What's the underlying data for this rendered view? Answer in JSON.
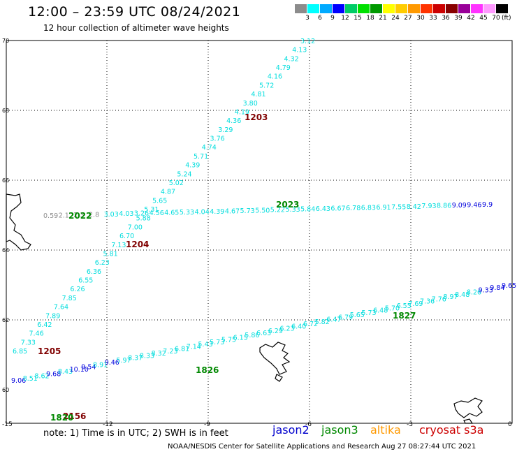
{
  "header": {
    "title": "12:00 – 23:59 UTC 08/24/2021",
    "subtitle": "12 hour collection of altimeter wave heights"
  },
  "legend": {
    "colors": [
      "#8c8c8c",
      "#00ffff",
      "#00aaff",
      "#0000ff",
      "#00cc66",
      "#00e000",
      "#009900",
      "#ffff00",
      "#ffcc00",
      "#ff9900",
      "#ff3300",
      "#cc0000",
      "#880000",
      "#990099",
      "#ff33ff",
      "#ff99ff",
      "#000000"
    ],
    "labels": [
      "3",
      "6",
      "9",
      "12",
      "15",
      "18",
      "21",
      "24",
      "27",
      "30",
      "33",
      "36",
      "39",
      "42",
      "45",
      "70"
    ],
    "unit": "(ft)"
  },
  "axes": {
    "x_ticks": [
      "-15",
      "-12",
      "-9",
      "-6",
      "-3",
      "0"
    ],
    "y_ticks": [
      "70",
      "68",
      "66",
      "64",
      "62",
      "60"
    ]
  },
  "track_labels": [
    {
      "text": "1203",
      "color": "#800000"
    },
    {
      "text": "1204",
      "color": "#800000"
    },
    {
      "text": "1205",
      "color": "#800000"
    },
    {
      "text": "2156",
      "color": "#800000"
    },
    {
      "text": "2022",
      "color": "#008800"
    },
    {
      "text": "2023",
      "color": "#008800"
    },
    {
      "text": "1826",
      "color": "#008800"
    },
    {
      "text": "1827",
      "color": "#008800"
    },
    {
      "text": "1820",
      "color": "#008800"
    }
  ],
  "tracks": {
    "t1203": [
      "3.12",
      "4.13",
      "4.32",
      "4.79",
      "4.16",
      "5.72",
      "4.81",
      "3.80",
      "4.19",
      "4.36",
      "3.29",
      "3.76",
      "4.74",
      "5.71",
      "4.39",
      "5.24",
      "5.02",
      "4.87",
      "5.65",
      "5.31",
      "5.88",
      "7.00",
      "6.70",
      "7.13",
      "5.81",
      "6.23",
      "6.36",
      "6.55",
      "6.26",
      "7.85",
      "7.64",
      "7.89",
      "6.42",
      "7.46",
      "7.33",
      "6.85"
    ],
    "t2022": [
      "0.59",
      "2.1",
      "2.3",
      "2.8",
      "3.03",
      "4.03",
      "3.26",
      "4.56",
      "4.65",
      "5.33",
      "4.04",
      "4.39",
      "4.67",
      "5.73",
      "5.50",
      "5.22",
      "5.33",
      "5.84",
      "6.43",
      "6.67",
      "6.78",
      "6.83",
      "6.91",
      "7.55",
      "8.42",
      "7.93",
      "8.86",
      "9.09",
      "9.46",
      "9.9"
    ],
    "t1826": [
      "9.06",
      "8.51",
      "8.62",
      "9.68",
      "8.43",
      "10.10",
      "9.54",
      "8.91",
      "9.46",
      "5.97",
      "8.37",
      "8.33",
      "8.32",
      "7.23",
      "6.81",
      "7.14",
      "5.43",
      "5.73",
      "5.75",
      "6.15",
      "5.86",
      "6.63",
      "6.29",
      "6.23",
      "6.40",
      "6.72",
      "5.82",
      "6.47",
      "6.79",
      "5.65",
      "5.73",
      "6.48",
      "5.70",
      "6.55",
      "7.69",
      "7.36",
      "7.76",
      "8.97",
      "8.48",
      "8.26",
      "9.33",
      "9.84",
      "9.65"
    ]
  },
  "footer": {
    "note": "note:  1) Time is in UTC;  2) SWH is in feet",
    "satellites": [
      {
        "name": "jason2",
        "color": "#0000cc"
      },
      {
        "name": "jason3",
        "color": "#008800"
      },
      {
        "name": "altika",
        "color": "#ff9900"
      },
      {
        "name": "cryosat s3a",
        "color": "#cc0000"
      }
    ],
    "credit": "NOAA/NESDIS Center for Satellite Applications and Research    Aug 27 08:27:44 UTC 2021"
  }
}
